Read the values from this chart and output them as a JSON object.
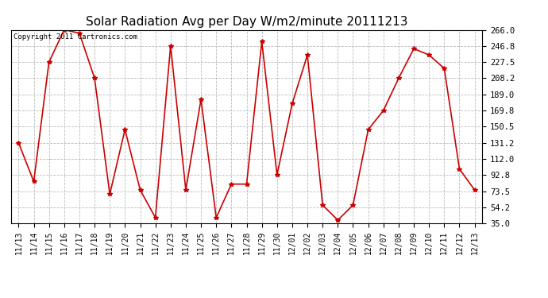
{
  "title": "Solar Radiation Avg per Day W/m2/minute 20111213",
  "copyright": "Copyright 2011 Cartronics.com",
  "dates": [
    "11/13",
    "11/14",
    "11/15",
    "11/16",
    "11/17",
    "11/18",
    "11/19",
    "11/20",
    "11/21",
    "11/22",
    "11/23",
    "11/24",
    "11/25",
    "11/26",
    "11/27",
    "11/28",
    "11/29",
    "11/30",
    "12/01",
    "12/02",
    "12/03",
    "12/04",
    "12/05",
    "12/06",
    "12/07",
    "12/08",
    "12/09",
    "12/10",
    "12/11",
    "12/12",
    "12/13"
  ],
  "values": [
    131.2,
    85.0,
    227.5,
    266.0,
    262.0,
    208.2,
    70.0,
    147.0,
    75.0,
    42.0,
    246.8,
    75.0,
    183.0,
    42.0,
    82.0,
    82.0,
    252.0,
    93.0,
    178.0,
    236.0,
    57.0,
    39.0,
    57.0,
    147.0,
    169.8,
    208.2,
    243.5,
    236.0,
    220.0,
    100.0,
    75.0
  ],
  "line_color": "#cc0000",
  "marker": "*",
  "marker_size": 4,
  "ylim": [
    35.0,
    266.0
  ],
  "yticks": [
    35.0,
    54.2,
    73.5,
    92.8,
    112.0,
    131.2,
    150.5,
    169.8,
    189.0,
    208.2,
    227.5,
    246.8,
    266.0
  ],
  "grid_color": "#bbbbbb",
  "background_color": "#ffffff",
  "title_fontsize": 11,
  "copyright_fontsize": 6.5,
  "tick_fontsize": 7,
  "ytick_fontsize": 7.5
}
